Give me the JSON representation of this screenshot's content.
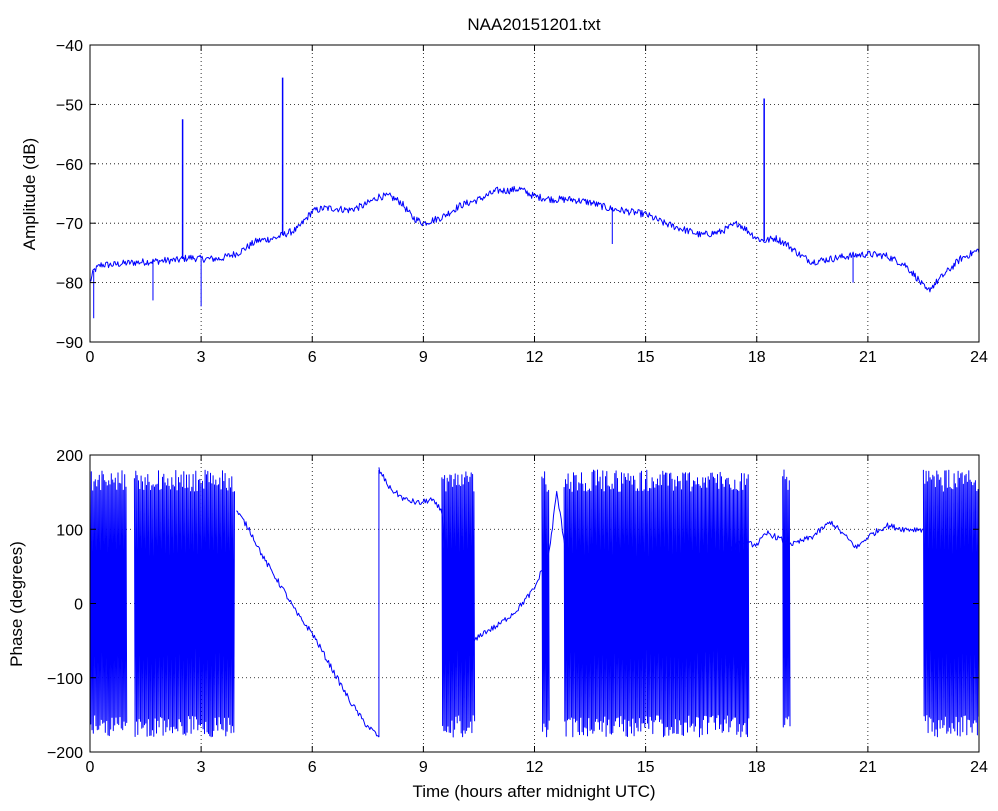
{
  "title": "NAA20151201.txt",
  "colors": {
    "series": "#0000ff",
    "axes": "#000000",
    "background": "#ffffff"
  },
  "chart_data": [
    {
      "type": "line",
      "id": "amplitude",
      "title": "NAA20151201.txt",
      "xlabel": "",
      "ylabel": "Amplitude (dB)",
      "xlim": [
        0,
        24
      ],
      "ylim": [
        -90,
        -40
      ],
      "xticks": [
        0,
        3,
        6,
        9,
        12,
        15,
        18,
        21,
        24
      ],
      "yticks": [
        -90,
        -80,
        -70,
        -60,
        -50,
        -40
      ],
      "grid": true,
      "series": [
        {
          "color": "#0000ff",
          "x": [
            0,
            0.1,
            0.3,
            0.6,
            1.0,
            1.5,
            2.0,
            2.4,
            2.5,
            2.7,
            3.0,
            3.5,
            4.0,
            4.5,
            5.0,
            5.2,
            5.6,
            6.0,
            6.3,
            6.6,
            7.0,
            7.4,
            7.8,
            8.1,
            8.4,
            8.7,
            9.0,
            9.5,
            10.0,
            10.5,
            11.0,
            11.3,
            11.6,
            12.0,
            12.5,
            13.0,
            13.5,
            14.0,
            14.5,
            15.0,
            15.5,
            16.0,
            16.5,
            17.0,
            17.5,
            18.0,
            18.2,
            18.5,
            18.8,
            19.2,
            19.5,
            20.0,
            20.5,
            21.0,
            21.5,
            22.0,
            22.3,
            22.6,
            23.0,
            23.5,
            24.0
          ],
          "y": [
            -80,
            -78,
            -77,
            -77,
            -76.7,
            -76.5,
            -76.3,
            -76.2,
            -76,
            -75.8,
            -76,
            -76,
            -75,
            -73,
            -72.5,
            -72,
            -71,
            -68,
            -67.5,
            -67.5,
            -67.8,
            -67,
            -65.5,
            -65.5,
            -66.5,
            -69,
            -70,
            -69,
            -67,
            -66,
            -64.5,
            -64.5,
            -64.2,
            -65.5,
            -66,
            -66,
            -66.5,
            -67.5,
            -68,
            -68.5,
            -70,
            -71,
            -72,
            -71.5,
            -70,
            -72.5,
            -73,
            -72.5,
            -73.5,
            -75.5,
            -76.5,
            -76,
            -75.5,
            -75.2,
            -75.5,
            -77,
            -79,
            -81.5,
            -79,
            -76,
            -74.5
          ]
        }
      ],
      "spikes": [
        {
          "x": 2.5,
          "y": -52.5
        },
        {
          "x": 5.2,
          "y": -45.5
        },
        {
          "x": 18.2,
          "y": -49
        }
      ],
      "dips": [
        {
          "x": 0.1,
          "y": -86
        },
        {
          "x": 1.7,
          "y": -83
        },
        {
          "x": 3.0,
          "y": -84
        },
        {
          "x": 14.1,
          "y": -73.5
        },
        {
          "x": 20.6,
          "y": -80
        }
      ]
    },
    {
      "type": "line",
      "id": "phase",
      "title": "",
      "xlabel": "Time (hours after midnight UTC)",
      "ylabel": "Phase (degrees)",
      "xlim": [
        0,
        24
      ],
      "ylim": [
        -200,
        200
      ],
      "xticks": [
        0,
        3,
        6,
        9,
        12,
        15,
        18,
        21,
        24
      ],
      "yticks": [
        -200,
        -100,
        0,
        100,
        200
      ],
      "grid": true,
      "series": [
        {
          "color": "#0000ff",
          "x": [
            3.95,
            4.3,
            4.7,
            5.2,
            5.6,
            6.0,
            6.5,
            7.0,
            7.4,
            7.8,
            7.8,
            8.1,
            8.5,
            8.9,
            9.2,
            9.5,
            9.7,
            10.0,
            10.3,
            10.6,
            11.0,
            11.5,
            12.0,
            12.4,
            12.6,
            13.0,
            13.5,
            14.0,
            14.5,
            15.0,
            15.5,
            16.0,
            16.5,
            17.0,
            17.5,
            18.0,
            18.3,
            18.7,
            19.0,
            19.5,
            20.0,
            20.3,
            20.7,
            21.0,
            21.5,
            22.0,
            22.5
          ],
          "y": [
            125,
            100,
            60,
            20,
            -15,
            -40,
            -85,
            -130,
            -160,
            -180,
            180,
            155,
            140,
            135,
            140,
            125,
            0,
            -80,
            -55,
            -40,
            -30,
            -10,
            20,
            70,
            150,
            20,
            0,
            20,
            -10,
            5,
            -5,
            10,
            20,
            60,
            80,
            80,
            95,
            85,
            80,
            90,
            110,
            95,
            75,
            90,
            105,
            100,
            100
          ]
        }
      ],
      "wrapping_intervals": [
        [
          0,
          1.0
        ],
        [
          1.2,
          3.9
        ],
        [
          9.5,
          10.4
        ],
        [
          12.2,
          12.4
        ],
        [
          12.8,
          17.8
        ],
        [
          18.7,
          18.9
        ],
        [
          22.5,
          24
        ]
      ]
    }
  ]
}
